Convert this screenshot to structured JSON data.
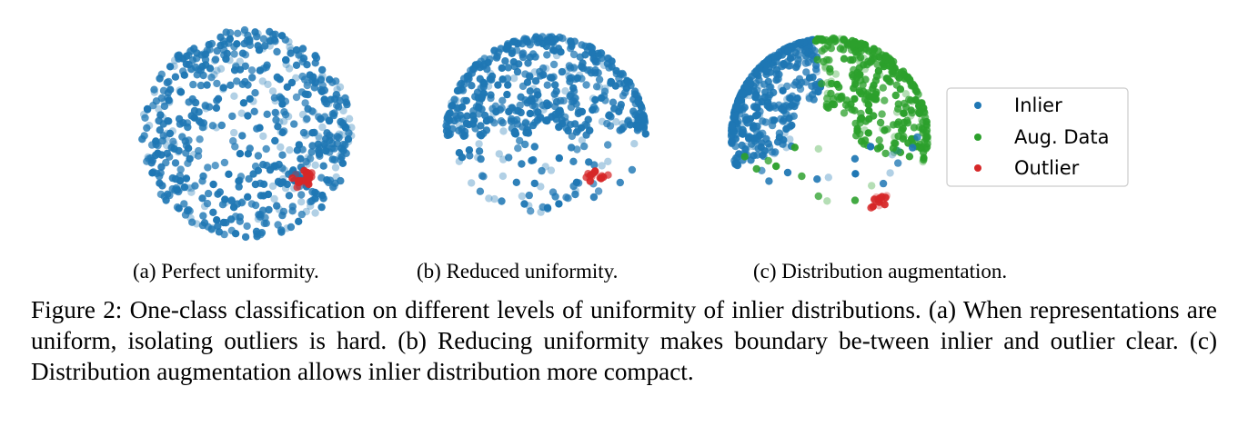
{
  "chart_data": [
    {
      "type": "scatter",
      "panel_label": "(a) Perfect uniformity.",
      "series": [
        {
          "name": "Inlier",
          "color": "#1f77b4",
          "distribution": "uniform over the full disc",
          "approx_points": 600
        },
        {
          "name": "Outlier",
          "color": "#d62728",
          "distribution": "tight cluster near lower-right of disc",
          "approx_points": 20
        }
      ],
      "axes": "hidden"
    },
    {
      "type": "scatter",
      "panel_label": "(b) Reduced uniformity.",
      "series": [
        {
          "name": "Inlier",
          "color": "#1f77b4",
          "distribution": "dense along upper arc, sparse toward bottom",
          "approx_points": 450
        },
        {
          "name": "Outlier",
          "color": "#d62728",
          "distribution": "tight cluster lower-right",
          "approx_points": 15
        }
      ],
      "axes": "hidden"
    },
    {
      "type": "scatter",
      "panel_label": "(c) Distribution augmentation.",
      "series": [
        {
          "name": "Inlier",
          "color": "#1f77b4",
          "distribution": "compact along upper-left arc",
          "approx_points": 350
        },
        {
          "name": "Aug. Data",
          "color": "#2ca02c",
          "distribution": "along upper-right arc",
          "approx_points": 300
        },
        {
          "name": "Outlier",
          "color": "#d62728",
          "distribution": "tight cluster lower-right",
          "approx_points": 15
        }
      ],
      "axes": "hidden",
      "legend": {
        "placement": "right",
        "entries": [
          "Inlier",
          "Aug. Data",
          "Outlier"
        ]
      }
    }
  ],
  "legend": {
    "inlier": "Inlier",
    "aug": "Aug. Data",
    "outlier": "Outlier"
  },
  "subcaptions": {
    "a": "(a) Perfect uniformity.",
    "b": "(b) Reduced uniformity.",
    "c": "(c) Distribution augmentation."
  },
  "caption": "Figure 2: One-class classification on different levels of uniformity of inlier distributions. (a) When representations are uniform, isolating outliers is hard. (b) Reducing uniformity makes boundary be-tween inlier and outlier clear. (c) Distribution augmentation allows inlier distribution more compact.",
  "colors": {
    "inlier": "#1f77b4",
    "aug": "#2ca02c",
    "outlier": "#d62728"
  }
}
